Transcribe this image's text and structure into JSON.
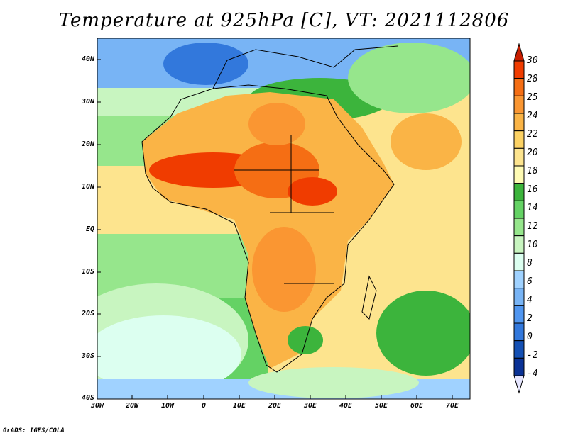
{
  "title": "Temperature at 925hPa [C], VT: 2021112806",
  "credit": "GrADS: IGES/COLA",
  "map": {
    "lat_labels": [
      "40N",
      "30N",
      "20N",
      "10N",
      "EQ",
      "10S",
      "20S",
      "30S",
      "40S"
    ],
    "lon_labels": [
      "30W",
      "20W",
      "10W",
      "0",
      "10E",
      "20E",
      "30E",
      "40E",
      "50E",
      "60E",
      "70E"
    ]
  },
  "colorbar": {
    "labels": [
      "30",
      "28",
      "25",
      "24",
      "22",
      "20",
      "18",
      "16",
      "14",
      "12",
      "10",
      "8",
      "6",
      "4",
      "2",
      "0",
      "-2",
      "-4"
    ],
    "colors": [
      "#c81e00",
      "#f03c00",
      "#f56e14",
      "#fa9632",
      "#fab446",
      "#fcd264",
      "#fde48e",
      "#fffbb4",
      "#3cb43c",
      "#64d264",
      "#96e68c",
      "#c8f5c0",
      "#dcfff0",
      "#a0d2ff",
      "#78b4f5",
      "#5096f0",
      "#3278dc",
      "#1450b4",
      "#0a3296"
    ]
  }
}
